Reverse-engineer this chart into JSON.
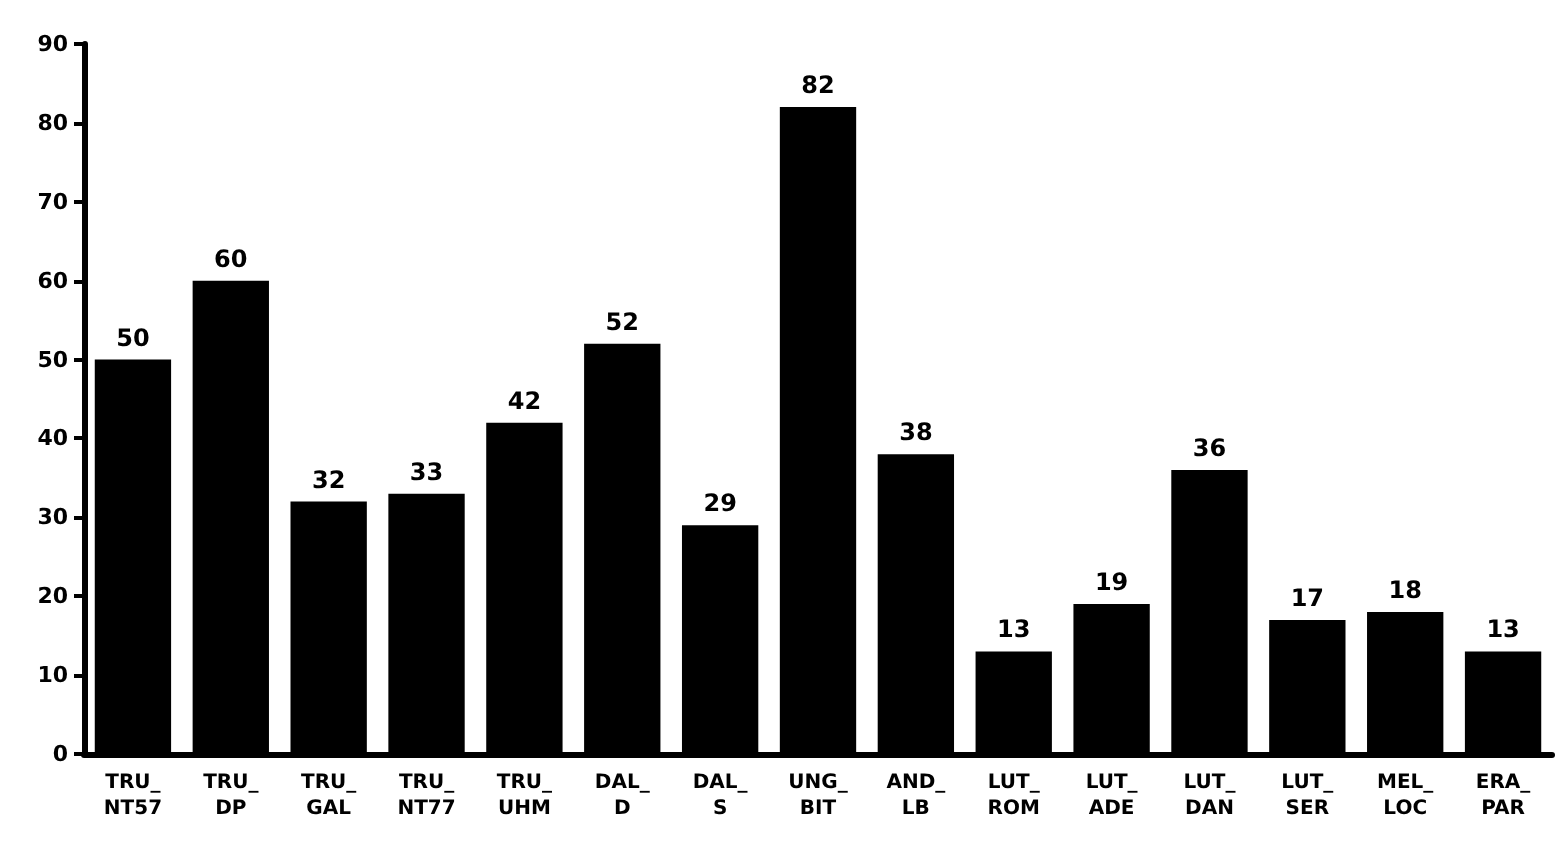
{
  "chart_data": {
    "type": "bar",
    "categories": [
      "TRU_\nNT57",
      "TRU_\nDP",
      "TRU_\nGAL",
      "TRU_\nNT77",
      "TRU_\nUHM",
      "DAL_\nD",
      "DAL_\nS",
      "UNG_\nBIT",
      "AND_\nLB",
      "LUT_\nROM",
      "LUT_\nADE",
      "LUT_\nDAN",
      "LUT_\nSER",
      "MEL_\nLOC",
      "ERA_\nPAR"
    ],
    "values": [
      50,
      60,
      32,
      33,
      42,
      52,
      29,
      82,
      38,
      13,
      19,
      36,
      17,
      18,
      13
    ],
    "color": "#000000",
    "ylim": [
      0,
      90
    ],
    "yticks": [
      0,
      10,
      20,
      30,
      40,
      50,
      60,
      70,
      80,
      90
    ],
    "data_labels": true,
    "grid": false
  }
}
